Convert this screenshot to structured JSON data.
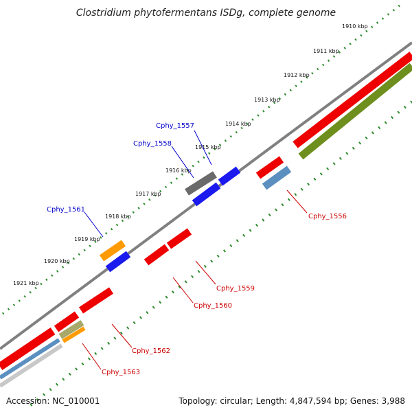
{
  "title": "Clostridium phytofermentans ISDg, complete genome",
  "footer": {
    "accession": "Accession: NC_010001",
    "topology": "Topology: circular; Length: 4,847,594 bp; Genes: 3,988"
  },
  "colors": {
    "backbone": "#808080",
    "red": "#ee0000",
    "blue": "#1a1aee",
    "darkgray": "#6a6a6a",
    "orange": "#ff9a00",
    "steelblue": "#5b8fc0",
    "olive": "#6e8e1e",
    "khaki": "#a8a86a",
    "tick": "#2e8b2e",
    "label_blue": "#0000cc",
    "label_red": "#cc0000"
  },
  "kbp_ticks": [
    "1910 kbp",
    "1911 kbp",
    "1912 kbp",
    "1913 kbp",
    "1914 kbp",
    "1915 kbp",
    "1916 kbp",
    "1917 kbp",
    "1918 kbp",
    "1919 kbp",
    "1920 kbp",
    "1921 kbp"
  ],
  "gene_labels": {
    "cphy_1557": "Cphy_1557",
    "cphy_1558": "Cphy_1558",
    "cphy_1561": "Cphy_1561",
    "cphy_1556": "Cphy_1556",
    "cphy_1559": "Cphy_1559",
    "cphy_1560": "Cphy_1560",
    "cphy_1562": "Cphy_1562",
    "cphy_1563": "Cphy_1563"
  }
}
